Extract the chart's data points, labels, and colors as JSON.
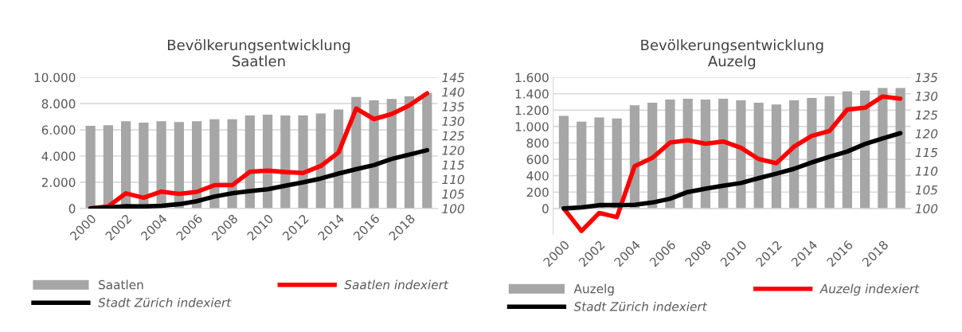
{
  "chart_data": [
    {
      "type": "bar",
      "title": "Bevölkerungsentwicklung\nSaatlen",
      "categories": [
        "2000",
        null,
        "2002",
        null,
        "2004",
        null,
        "2006",
        null,
        "2008",
        null,
        "2010",
        null,
        "2012",
        null,
        "2014",
        null,
        "2016",
        null,
        "2018",
        null
      ],
      "series": [
        {
          "name": "Saatlen",
          "color": "#a6a6a6",
          "values": [
            6300,
            6350,
            6650,
            6550,
            6650,
            6600,
            6650,
            6800,
            6800,
            7100,
            7150,
            7100,
            7100,
            7250,
            7550,
            8500,
            8250,
            8350,
            8550,
            8800
          ]
        },
        {
          "name": "Saatlen indexiert",
          "type": "line",
          "axis": "y2",
          "color": "#ff0000",
          "values": [
            100,
            100.7,
            105.2,
            103.7,
            105.8,
            105.0,
            105.7,
            108.0,
            108.0,
            112.6,
            113.0,
            112.5,
            112.2,
            114.6,
            119.2,
            134.3,
            130.7,
            132.4,
            135.4,
            139.5
          ]
        },
        {
          "name": "Stadt Zürich indexiert",
          "type": "line",
          "axis": "y2",
          "color": "#000000",
          "values": [
            100,
            100.4,
            100.8,
            100.7,
            100.9,
            101.5,
            102.5,
            104.1,
            105.2,
            106.0,
            106.6,
            107.8,
            109.0,
            110.3,
            112.0,
            113.5,
            114.9,
            117.0,
            118.5,
            120.0
          ]
        }
      ],
      "ylim": [
        0,
        10000
      ],
      "yticks": [
        0,
        {
          "value": 2000,
          "label": "2.000"
        },
        {
          "value": 4000,
          "label": "4.000"
        },
        {
          "value": 6000,
          "label": "6.000"
        },
        {
          "value": 8000,
          "label": "8.000"
        },
        {
          "value": 10000,
          "label": "10.000"
        }
      ],
      "y2lim": [
        100,
        145
      ],
      "y2ticks": [
        100,
        105,
        110,
        115,
        120,
        125,
        130,
        135,
        140,
        145
      ],
      "grid": "y",
      "legend": "bottom",
      "line_style": "solid",
      "marker": "none"
    },
    {
      "type": "bar",
      "title": "Bevölkerungsentwicklung\nAuzelg",
      "categories": [
        "2000",
        null,
        "2002",
        null,
        "2004",
        null,
        "2006",
        null,
        "2008",
        null,
        "2010",
        null,
        "2012",
        null,
        "2014",
        null,
        "2016",
        null,
        "2018",
        null
      ],
      "series": [
        {
          "name": "Auzelg",
          "color": "#a6a6a6",
          "values": [
            1130,
            1060,
            1110,
            1100,
            1260,
            1290,
            1330,
            1340,
            1330,
            1340,
            1320,
            1290,
            1270,
            1320,
            1350,
            1370,
            1430,
            1440,
            1470,
            1470
          ]
        },
        {
          "name": "Auzelg indexiert",
          "type": "line",
          "axis": "y2",
          "color": "#ff0000",
          "values": [
            100,
            94.0,
            98.8,
            97.7,
            111.3,
            113.5,
            117.6,
            118.2,
            117.3,
            117.9,
            116.2,
            113.2,
            112.1,
            116.5,
            119.4,
            120.7,
            126.4,
            126.9,
            129.9,
            129.3
          ]
        },
        {
          "name": "Stadt Zürich indexiert",
          "type": "line",
          "axis": "y2",
          "color": "#000000",
          "values": [
            100,
            100.3,
            100.9,
            100.9,
            101.0,
            101.6,
            102.6,
            104.4,
            105.3,
            106.1,
            106.8,
            108.1,
            109.3,
            110.6,
            112.3,
            113.8,
            115.2,
            117.2,
            118.7,
            120.1
          ]
        }
      ],
      "ylim": [
        -320,
        1600
      ],
      "yticks": [
        0,
        200,
        400,
        600,
        800,
        {
          "value": 1000,
          "label": "1.000"
        },
        {
          "value": 1200,
          "label": "1.200"
        },
        {
          "value": 1400,
          "label": "1.400"
        },
        {
          "value": 1600,
          "label": "1.600"
        }
      ],
      "y2lim": [
        93,
        135
      ],
      "y2ticks": [
        100,
        105,
        110,
        115,
        120,
        125,
        130,
        135
      ],
      "grid": "y",
      "legend": "bottom",
      "line_style": "solid",
      "marker": "none"
    }
  ]
}
